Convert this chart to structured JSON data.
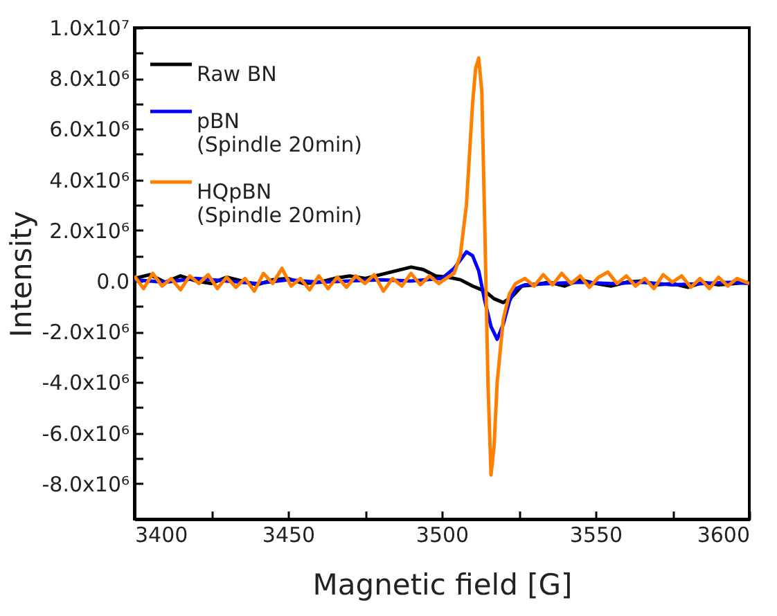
{
  "chart_data": {
    "type": "line",
    "xlabel": "Magnetic field [G]",
    "ylabel": "Intensity",
    "xlim": [
      3400,
      3600
    ],
    "ylim": [
      -9400000,
      10000000
    ],
    "xticks": [
      3400,
      {
        "value": 3425,
        "label": null
      },
      3450,
      {
        "value": 3475,
        "label": null
      },
      3500,
      {
        "value": 3525,
        "label": null
      },
      3550,
      {
        "value": 3575,
        "label": null
      },
      3600
    ],
    "yticks": [
      {
        "value": -8000000,
        "label": "-8.0x10⁶"
      },
      {
        "value": -7000000,
        "label": null
      },
      {
        "value": -6000000,
        "label": "-6.0x10⁶"
      },
      {
        "value": -5000000,
        "label": null
      },
      {
        "value": -4000000,
        "label": "-4.0x10⁶"
      },
      {
        "value": -3000000,
        "label": null
      },
      {
        "value": -2000000,
        "label": "-2.0x10⁶"
      },
      {
        "value": -1000000,
        "label": null
      },
      {
        "value": 0,
        "label": "0.0"
      },
      {
        "value": 1000000,
        "label": null
      },
      {
        "value": 2000000,
        "label": "2.0x10⁶"
      },
      {
        "value": 3000000,
        "label": null
      },
      {
        "value": 4000000,
        "label": "4.0x10⁶"
      },
      {
        "value": 5000000,
        "label": null
      },
      {
        "value": 6000000,
        "label": "6.0x10⁶"
      },
      {
        "value": 7000000,
        "label": null
      },
      {
        "value": 8000000,
        "label": "8.0x10⁶"
      },
      {
        "value": 9000000,
        "label": null
      },
      {
        "value": 10000000,
        "label": "1.0x10⁷"
      }
    ],
    "grid": false,
    "legend": "top left",
    "line_style": "solid",
    "series": [
      {
        "name": "Raw BN",
        "color": "#000000",
        "x": [
          3400,
          3405,
          3410,
          3415,
          3420,
          3425,
          3430,
          3435,
          3440,
          3445,
          3450,
          3455,
          3460,
          3465,
          3470,
          3475,
          3480,
          3485,
          3490,
          3494,
          3498,
          3502,
          3506,
          3510,
          3514,
          3517,
          3520,
          3523,
          3526,
          3530,
          3535,
          3540,
          3545,
          3550,
          3555,
          3560,
          3565,
          3570,
          3575,
          3580,
          3585,
          3590,
          3595,
          3600
        ],
        "values": [
          100000,
          250000,
          -50000,
          200000,
          0,
          -100000,
          150000,
          0,
          -150000,
          50000,
          100000,
          -100000,
          -50000,
          100000,
          200000,
          100000,
          250000,
          400000,
          550000,
          450000,
          200000,
          150000,
          50000,
          -200000,
          -400000,
          -700000,
          -850000,
          -600000,
          -200000,
          -150000,
          -50000,
          -200000,
          50000,
          -100000,
          -200000,
          -50000,
          0,
          -150000,
          -100000,
          -250000,
          -50000,
          -150000,
          -100000,
          -50000
        ]
      },
      {
        "name": "pBN\n(Spindle 20min)",
        "color": "#0000ff",
        "x": [
          3400,
          3410,
          3420,
          3430,
          3440,
          3450,
          3460,
          3470,
          3480,
          3490,
          3500,
          3504,
          3508,
          3510,
          3512,
          3514,
          3516,
          3518,
          3520,
          3522,
          3524,
          3527,
          3535,
          3545,
          3555,
          3565,
          3575,
          3585,
          3595,
          3600
        ],
        "values": [
          50000,
          -50000,
          100000,
          0,
          -100000,
          50000,
          -50000,
          0,
          50000,
          0,
          100000,
          500000,
          1150000,
          1000000,
          400000,
          -800000,
          -1800000,
          -2300000,
          -1700000,
          -800000,
          -300000,
          -150000,
          -100000,
          -50000,
          -100000,
          -50000,
          -150000,
          -100000,
          -50000,
          -100000
        ]
      },
      {
        "name": "HQpBN\n(Spindle 20min)",
        "color": "#ff8000",
        "x": [
          3400,
          3403,
          3406,
          3409,
          3412,
          3415,
          3418,
          3421,
          3424,
          3427,
          3430,
          3433,
          3436,
          3439,
          3442,
          3445,
          3448,
          3451,
          3454,
          3457,
          3460,
          3463,
          3466,
          3469,
          3472,
          3475,
          3478,
          3481,
          3484,
          3487,
          3490,
          3493,
          3496,
          3499,
          3502,
          3504,
          3506,
          3508,
          3510,
          3511,
          3512,
          3513,
          3514,
          3515,
          3516,
          3517,
          3518,
          3520,
          3522,
          3524,
          3527,
          3530,
          3533,
          3536,
          3539,
          3542,
          3545,
          3548,
          3551,
          3554,
          3557,
          3560,
          3563,
          3566,
          3569,
          3572,
          3575,
          3578,
          3581,
          3584,
          3587,
          3590,
          3593,
          3596,
          3600
        ],
        "values": [
          200000,
          -300000,
          300000,
          -200000,
          100000,
          -350000,
          200000,
          -100000,
          250000,
          -300000,
          150000,
          -250000,
          100000,
          -400000,
          300000,
          -100000,
          500000,
          -200000,
          100000,
          -350000,
          200000,
          -300000,
          150000,
          -250000,
          200000,
          -100000,
          250000,
          -400000,
          100000,
          -200000,
          300000,
          -150000,
          200000,
          -100000,
          150000,
          300000,
          1000000,
          3000000,
          7000000,
          8400000,
          8800000,
          7500000,
          2000000,
          -4000000,
          -7660000,
          -6500000,
          -4000000,
          -1500000,
          -500000,
          -100000,
          100000,
          -200000,
          250000,
          -150000,
          300000,
          -100000,
          200000,
          -250000,
          150000,
          350000,
          -100000,
          200000,
          -200000,
          100000,
          -300000,
          250000,
          -50000,
          200000,
          -250000,
          100000,
          -300000,
          150000,
          -200000,
          100000,
          -100000
        ]
      }
    ]
  }
}
